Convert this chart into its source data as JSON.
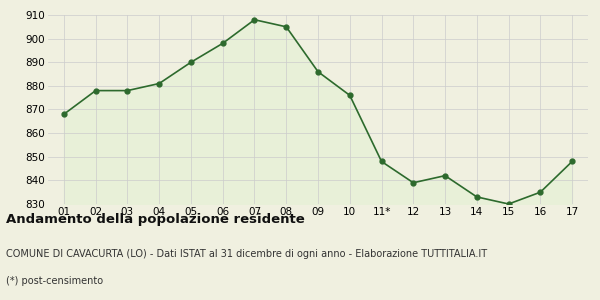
{
  "x_labels": [
    "01",
    "02",
    "03",
    "04",
    "05",
    "06",
    "07",
    "08",
    "09",
    "10",
    "11*",
    "12",
    "13",
    "14",
    "15",
    "16",
    "17"
  ],
  "x_values": [
    1,
    2,
    3,
    4,
    5,
    6,
    7,
    8,
    9,
    10,
    11,
    12,
    13,
    14,
    15,
    16,
    17
  ],
  "y_values": [
    868,
    878,
    878,
    881,
    890,
    898,
    908,
    905,
    886,
    876,
    848,
    839,
    842,
    833,
    830,
    835,
    848
  ],
  "ylim": [
    830,
    910
  ],
  "yticks": [
    830,
    840,
    850,
    860,
    870,
    880,
    890,
    900,
    910
  ],
  "line_color": "#2d6a2d",
  "fill_color": "#e8f0d8",
  "marker_color": "#2d6a2d",
  "bg_color": "#f0f0e0",
  "grid_color": "#cccccc",
  "title1": "Andamento della popolazione residente",
  "title2": "COMUNE DI CAVACURTA (LO) - Dati ISTAT al 31 dicembre di ogni anno - Elaborazione TUTTITALIA.IT",
  "title3": "(*) post-censimento",
  "title1_fontsize": 9.5,
  "title2_fontsize": 7,
  "title3_fontsize": 7,
  "tick_fontsize": 7.5
}
